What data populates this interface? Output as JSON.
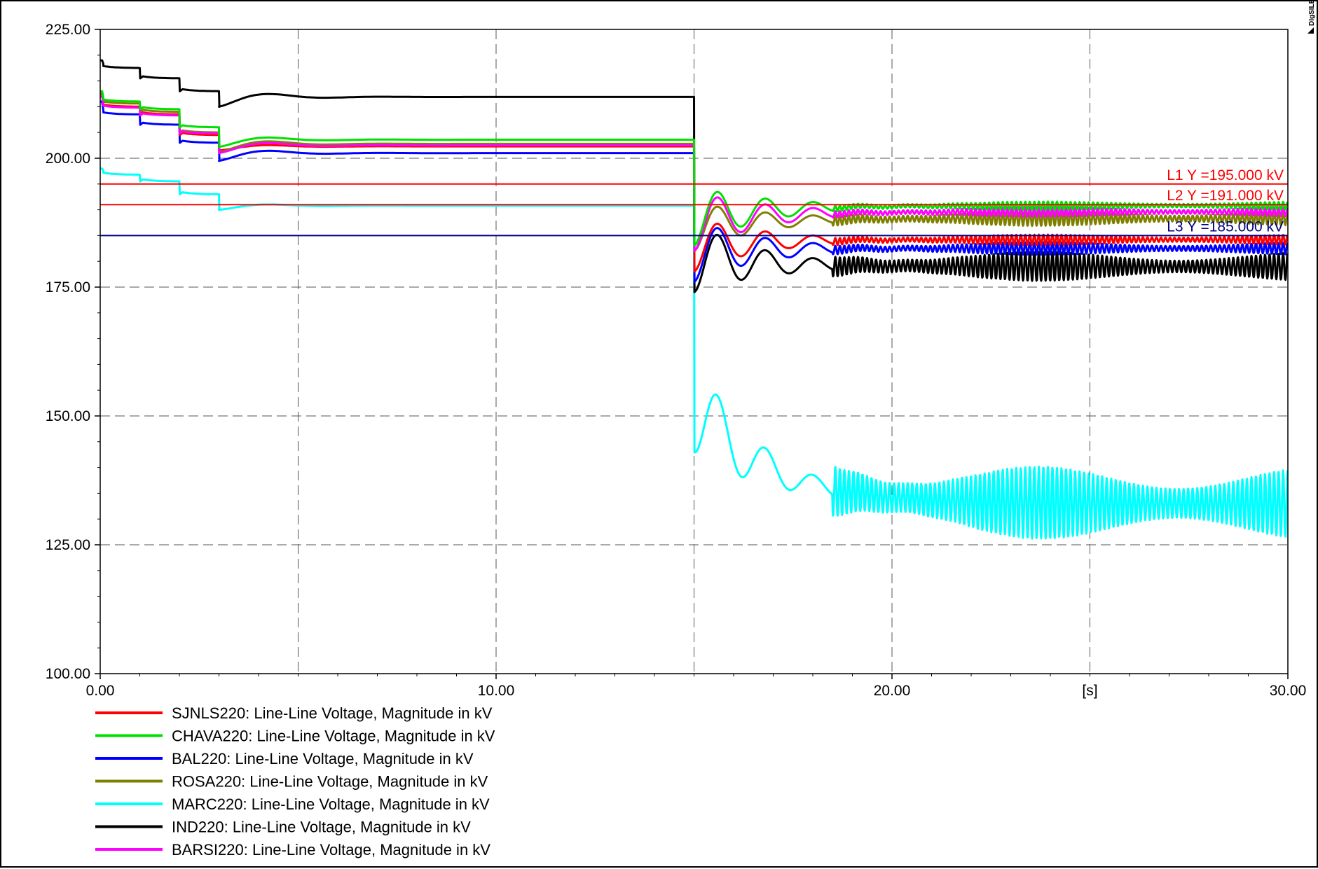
{
  "brand": "DIgSILENT",
  "chart_data": {
    "type": "line",
    "xlabel": "[s]",
    "xlim": [
      0,
      30
    ],
    "ylim": [
      100,
      225
    ],
    "x_ticks": [
      {
        "value": 0,
        "label": "0.00"
      },
      {
        "value": 10,
        "label": "10.00"
      },
      {
        "value": 20,
        "label": "20.00"
      },
      {
        "value": 30,
        "label": "30.00"
      }
    ],
    "y_ticks": [
      {
        "value": 225,
        "label": "225.00"
      },
      {
        "value": 200,
        "label": "200.00"
      },
      {
        "value": 175,
        "label": "175.00"
      },
      {
        "value": 150,
        "label": "150.00"
      },
      {
        "value": 125,
        "label": "125.00"
      },
      {
        "value": 100,
        "label": "100.00"
      }
    ],
    "grid": true,
    "legend_position": "bottom-left",
    "reference_lines": [
      {
        "name": "L1",
        "label": "L1 Y =195.000 kV",
        "y": 195,
        "color": "#ff0000"
      },
      {
        "name": "L2",
        "label": "L2 Y =191.000 kV",
        "y": 191,
        "color": "#ff0000"
      },
      {
        "name": "L3",
        "label": "L3 Y =185.000 kV",
        "y": 185,
        "color": "#000080"
      }
    ],
    "series": [
      {
        "name": "SJNLS220: Line-Line Voltage, Magnitude in kV",
        "color": "#ff0000",
        "pre": [
          212.5,
          210,
          208.5,
          204.5,
          201.5,
          202.3
        ],
        "final": 184.2,
        "band": 1.0,
        "dip": 178,
        "peak": 188.5
      },
      {
        "name": "CHAVA220: Line-Line Voltage, Magnitude in kV",
        "color": "#00e000",
        "pre": [
          213,
          211,
          209.5,
          206,
          202.2,
          203.6
        ],
        "final": 190.8,
        "band": 0.8,
        "dip": 183,
        "peak": 194.5
      },
      {
        "name": "BAL220: Line-Line Voltage, Magnitude in kV",
        "color": "#0000ff",
        "pre": [
          211,
          208.5,
          206.5,
          203,
          199.5,
          201.0
        ],
        "final": 182.5,
        "band": 1.2,
        "dip": 176,
        "peak": 188
      },
      {
        "name": "ROSA220: Line-Line Voltage, Magnitude in kV",
        "color": "#808000",
        "pre": [
          212.8,
          210.6,
          209,
          205,
          201.2,
          202.8
        ],
        "final": 188.3,
        "band": 1.4,
        "dip": 182,
        "peak": 191.5
      },
      {
        "name": "MARC220: Line-Line Voltage, Magnitude in kV",
        "color": "#00ffff",
        "pre": [
          198,
          196.8,
          195.5,
          193,
          190,
          190.8
        ],
        "final": 133,
        "band": 7,
        "dip": 143,
        "peak": 162
      },
      {
        "name": "IND220: Line-Line Voltage, Magnitude in kV",
        "color": "#000000",
        "pre": [
          219,
          217.5,
          215.5,
          213,
          210,
          211.9
        ],
        "final": 179,
        "band": 2.8,
        "dip": 174,
        "peak": 187.5
      },
      {
        "name": "BARSI220: Line-Line Voltage, Magnitude in kV",
        "color": "#ff00ff",
        "pre": [
          212,
          209.8,
          208.3,
          204.8,
          201,
          202.5
        ],
        "final": 189.6,
        "band": 0.9,
        "dip": 182,
        "peak": 193.5
      }
    ]
  }
}
